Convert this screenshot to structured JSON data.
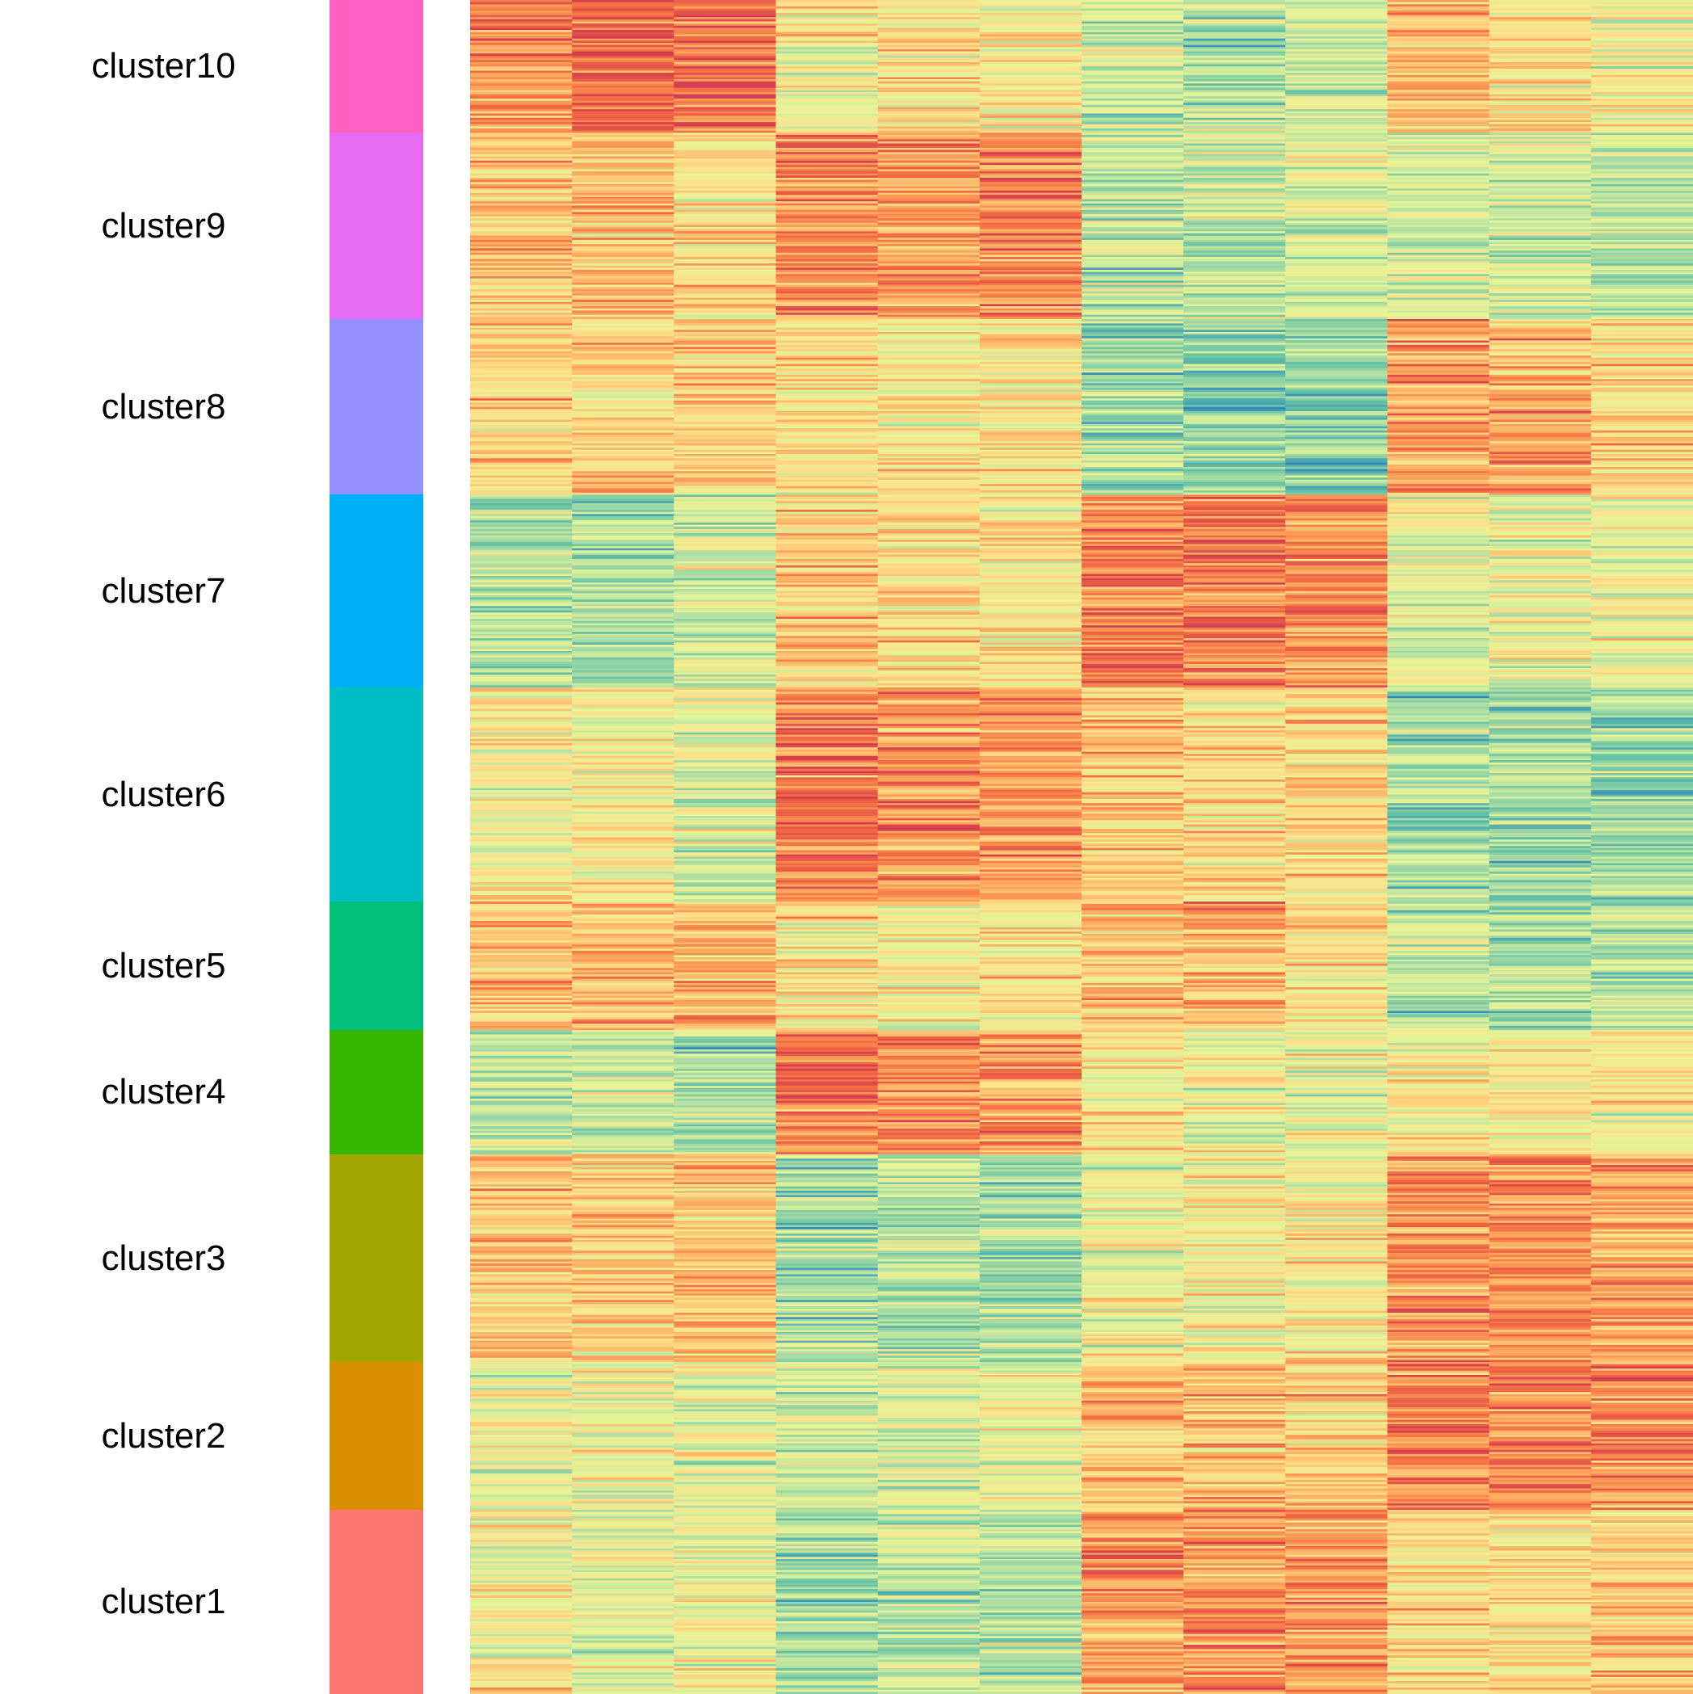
{
  "chart_data": {
    "type": "heatmap",
    "title": "",
    "xlabel": "",
    "ylabel": "",
    "columns": 12,
    "row_groups": [
      {
        "name": "cluster10",
        "color": "#FF61C3",
        "rows": 62,
        "pattern": [
          1.5,
          1.7,
          1.7,
          0.1,
          0.2,
          0.1,
          -0.6,
          -0.9,
          -0.6,
          1.0,
          0.3,
          -0.1
        ]
      },
      {
        "name": "cluster9",
        "color": "#E76BF3",
        "rows": 87,
        "pattern": [
          0.6,
          0.7,
          0.4,
          1.5,
          1.3,
          1.5,
          -0.8,
          -0.7,
          -0.5,
          -0.6,
          -0.6,
          -0.9
        ]
      },
      {
        "name": "cluster8",
        "color": "#9590FF",
        "rows": 82,
        "pattern": [
          0.6,
          0.4,
          0.5,
          0.3,
          0.1,
          0.3,
          -1.2,
          -1.4,
          -1.3,
          1.2,
          1.0,
          0.6
        ]
      },
      {
        "name": "cluster7",
        "color": "#00B0F6",
        "rows": 90,
        "pattern": [
          -0.9,
          -1.0,
          -0.5,
          0.6,
          0.4,
          0.2,
          1.6,
          1.6,
          1.4,
          -0.3,
          -0.2,
          -0.2
        ]
      },
      {
        "name": "cluster6",
        "color": "#00BFC4",
        "rows": 100,
        "pattern": [
          0.1,
          0.1,
          -0.4,
          1.6,
          1.3,
          1.3,
          0.6,
          0.4,
          0.5,
          -1.2,
          -1.2,
          -1.2
        ]
      },
      {
        "name": "cluster5",
        "color": "#00BF7D",
        "rows": 60,
        "pattern": [
          0.8,
          0.9,
          1.0,
          0.2,
          0.1,
          0.3,
          0.8,
          0.9,
          0.5,
          -0.9,
          -1.1,
          -0.8
        ]
      },
      {
        "name": "cluster4",
        "color": "#39B600",
        "rows": 58,
        "pattern": [
          -0.8,
          -0.7,
          -1.0,
          1.6,
          1.3,
          1.3,
          0.0,
          -0.3,
          -0.2,
          0.2,
          0.1,
          0.1
        ]
      },
      {
        "name": "cluster3",
        "color": "#A3A500",
        "rows": 97,
        "pattern": [
          0.7,
          0.7,
          0.7,
          -1.1,
          -0.9,
          -1.1,
          -0.1,
          0.0,
          0.1,
          1.4,
          1.4,
          1.1
        ]
      },
      {
        "name": "cluster2",
        "color": "#D89000",
        "rows": 69,
        "pattern": [
          -0.3,
          -0.2,
          -0.3,
          -0.6,
          -0.4,
          -0.2,
          0.6,
          0.7,
          0.7,
          1.6,
          1.6,
          1.5
        ]
      },
      {
        "name": "cluster1",
        "color": "#F8766D",
        "rows": 86,
        "pattern": [
          0.0,
          -0.3,
          -0.1,
          -1.1,
          -0.8,
          -0.8,
          1.3,
          1.3,
          1.2,
          0.4,
          0.4,
          0.7
        ]
      }
    ],
    "color_scale": [
      "#3288BD",
      "#66C2A5",
      "#ABDDA4",
      "#E6F598",
      "#FEE08B",
      "#FDAE61",
      "#F46D43",
      "#D53E4F"
    ],
    "value_range": [
      -2.5,
      2.5
    ]
  }
}
